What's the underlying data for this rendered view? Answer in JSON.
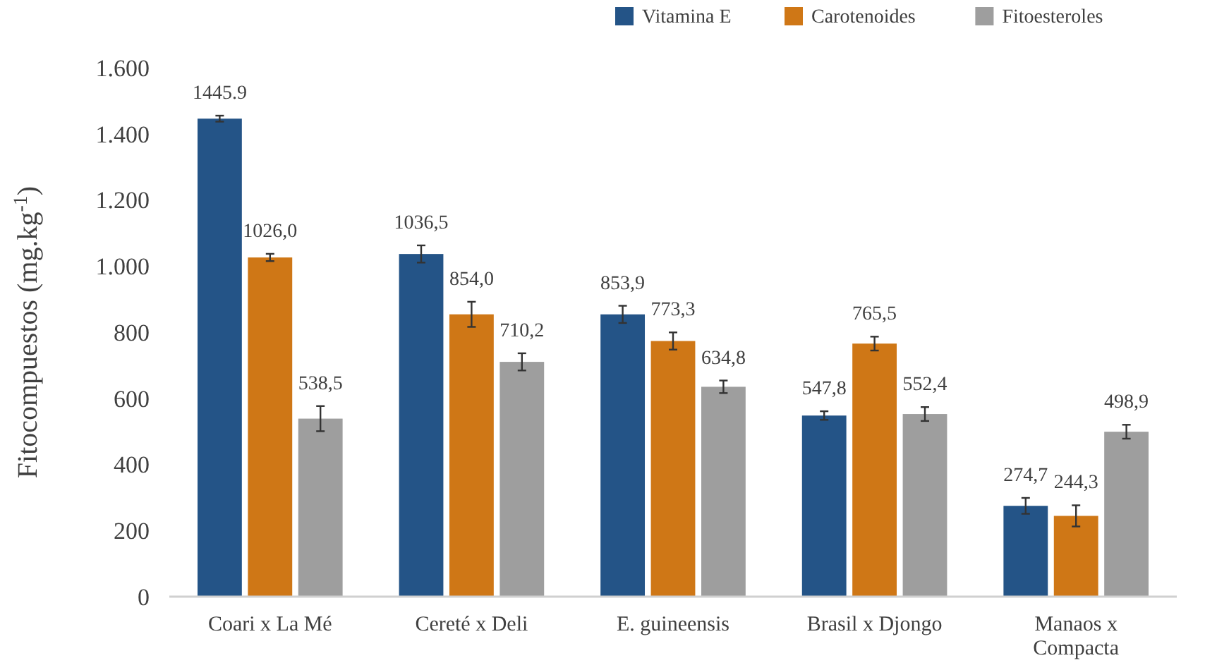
{
  "chart_data": {
    "type": "bar",
    "ylabel": "Fitocompuestos (mg.kg$^{-1}$)",
    "categories": [
      "Coari x La Mé",
      "Cereté x Deli",
      "E. guineensis",
      "Brasil x Djongo",
      "Manaos x Compacta"
    ],
    "series": [
      {
        "name": "Vitamina E",
        "color": "#245487",
        "values": [
          1445.9,
          1036.5,
          853.9,
          547.8,
          274.7
        ],
        "value_labels": [
          "1445.9",
          "1036,5",
          "853,9",
          "547,8",
          "274,7"
        ],
        "errors": [
          9,
          26,
          26,
          13,
          24
        ]
      },
      {
        "name": "Carotenoides",
        "color": "#cf7716",
        "values": [
          1026.0,
          854.0,
          773.3,
          765.5,
          244.3
        ],
        "value_labels": [
          "1026,0",
          "854,0",
          "773,3",
          "765,5",
          "244,3"
        ],
        "errors": [
          11,
          38,
          26,
          21,
          32
        ]
      },
      {
        "name": "Fitoesteroles",
        "color": "#9e9e9e",
        "values": [
          538.5,
          710.2,
          634.8,
          552.4,
          498.9
        ],
        "value_labels": [
          "538,5",
          "710,2",
          "634,8",
          "552,4",
          "498,9"
        ],
        "errors": [
          38,
          26,
          19,
          21,
          21
        ]
      }
    ],
    "ylim": [
      0,
      1600
    ],
    "yticks": [
      0,
      {
        "value": 200,
        "label": "200"
      },
      {
        "value": 400,
        "label": "400"
      },
      {
        "value": 600,
        "label": "600"
      },
      {
        "value": 800,
        "label": "800"
      },
      {
        "value": 1000,
        "label": "1.000"
      },
      {
        "value": 1200,
        "label": "1.200"
      },
      {
        "value": 1400,
        "label": "1.400"
      },
      {
        "value": 1600,
        "label": "1.600"
      }
    ],
    "grid": false,
    "legend": "top right"
  }
}
